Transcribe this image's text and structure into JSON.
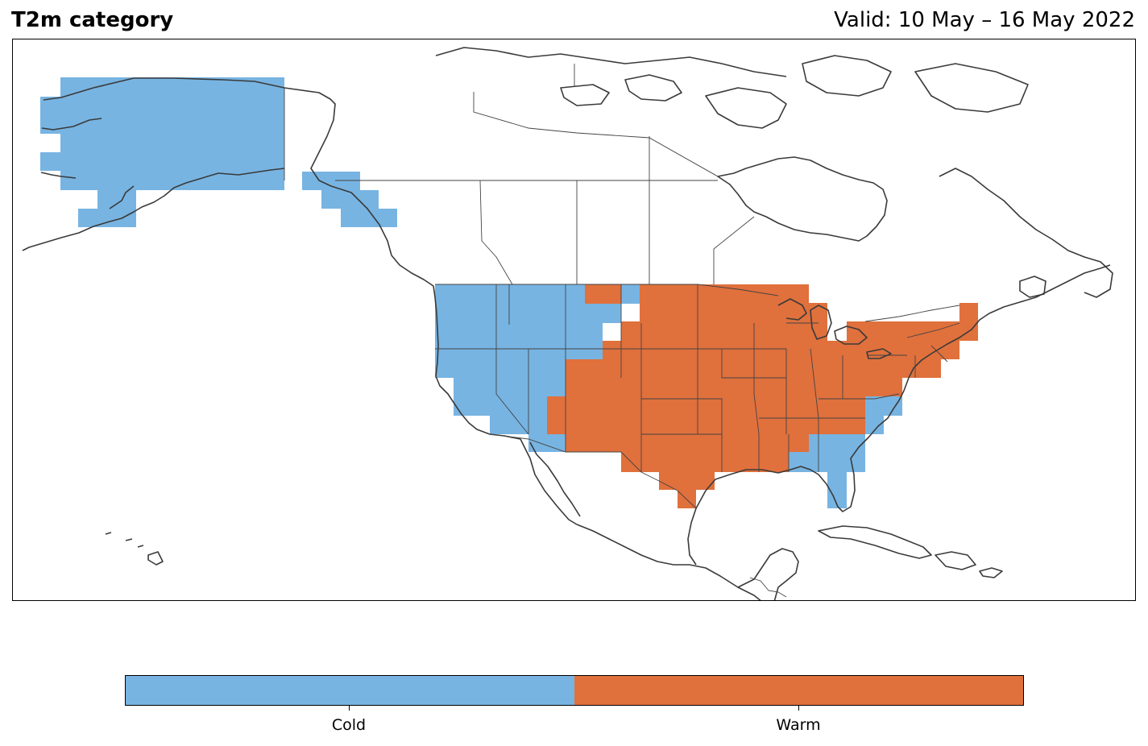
{
  "header": {
    "title": "T2m category",
    "valid": "Valid: 10 May – 16 May 2022"
  },
  "colors": {
    "cold": "#77b4e2",
    "warm": "#e0703c",
    "coastline": "#3a3a3a",
    "border": "#444444"
  },
  "legend": {
    "categories": [
      {
        "label": "Cold",
        "color": "#77b4e2"
      },
      {
        "label": "Warm",
        "color": "#e0703c"
      }
    ]
  }
}
